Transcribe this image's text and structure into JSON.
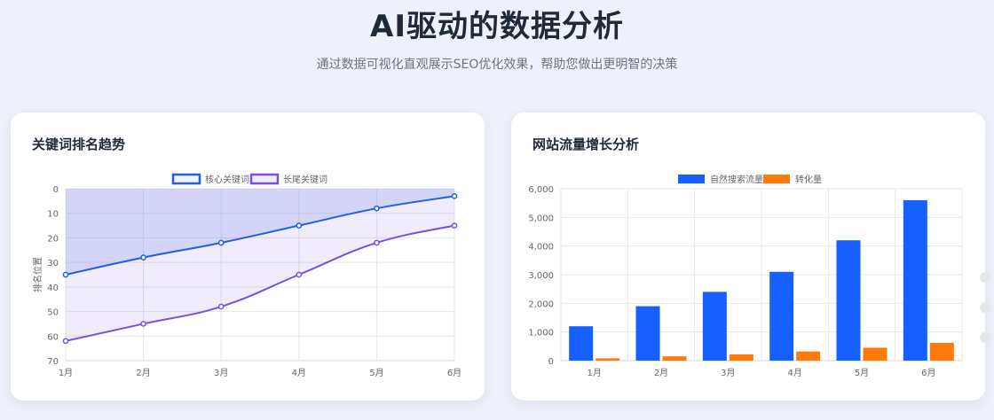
{
  "hero": {
    "title": "AI驱动的数据分析",
    "subtitle": "通过数据可视化直观展示SEO优化效果，帮助您做出更明智的决策"
  },
  "colors": {
    "blue": "#1f5fe0",
    "purple": "#7b4fe0",
    "bar_blue": "#1660ff",
    "bar_orange": "#ff7a0a"
  },
  "chart_data": [
    {
      "title": "关键词排名趋势",
      "type": "line",
      "x": [
        "1月",
        "2月",
        "3月",
        "4月",
        "5月",
        "6月"
      ],
      "series": [
        {
          "name": "核心关键词",
          "values": [
            35,
            28,
            22,
            15,
            8,
            3
          ],
          "fill": true
        },
        {
          "name": "长尾关键词",
          "values": [
            62,
            55,
            48,
            35,
            22,
            15
          ],
          "fill": true
        }
      ],
      "ylabel": "排名位置",
      "ylim": [
        0,
        70
      ],
      "y_reversed": true,
      "y_ticks": [
        0,
        10,
        20,
        30,
        40,
        50,
        60,
        70
      ],
      "grid": true,
      "legend": "top-center"
    },
    {
      "title": "网站流量增长分析",
      "type": "bar",
      "categories": [
        "1月",
        "2月",
        "3月",
        "4月",
        "5月",
        "6月"
      ],
      "series": [
        {
          "name": "自然搜索流量",
          "values": [
            1200,
            1900,
            2400,
            3100,
            4200,
            5600
          ]
        },
        {
          "name": "转化量",
          "values": [
            80,
            150,
            220,
            320,
            450,
            620
          ]
        }
      ],
      "ylim": [
        0,
        6000
      ],
      "y_ticks": [
        0,
        1000,
        2000,
        3000,
        4000,
        5000,
        6000
      ],
      "y_tick_labels": [
        "0",
        "1,000",
        "2,000",
        "3,000",
        "4,000",
        "5,000",
        "6,000"
      ],
      "grid": true,
      "legend": "top-center"
    }
  ]
}
